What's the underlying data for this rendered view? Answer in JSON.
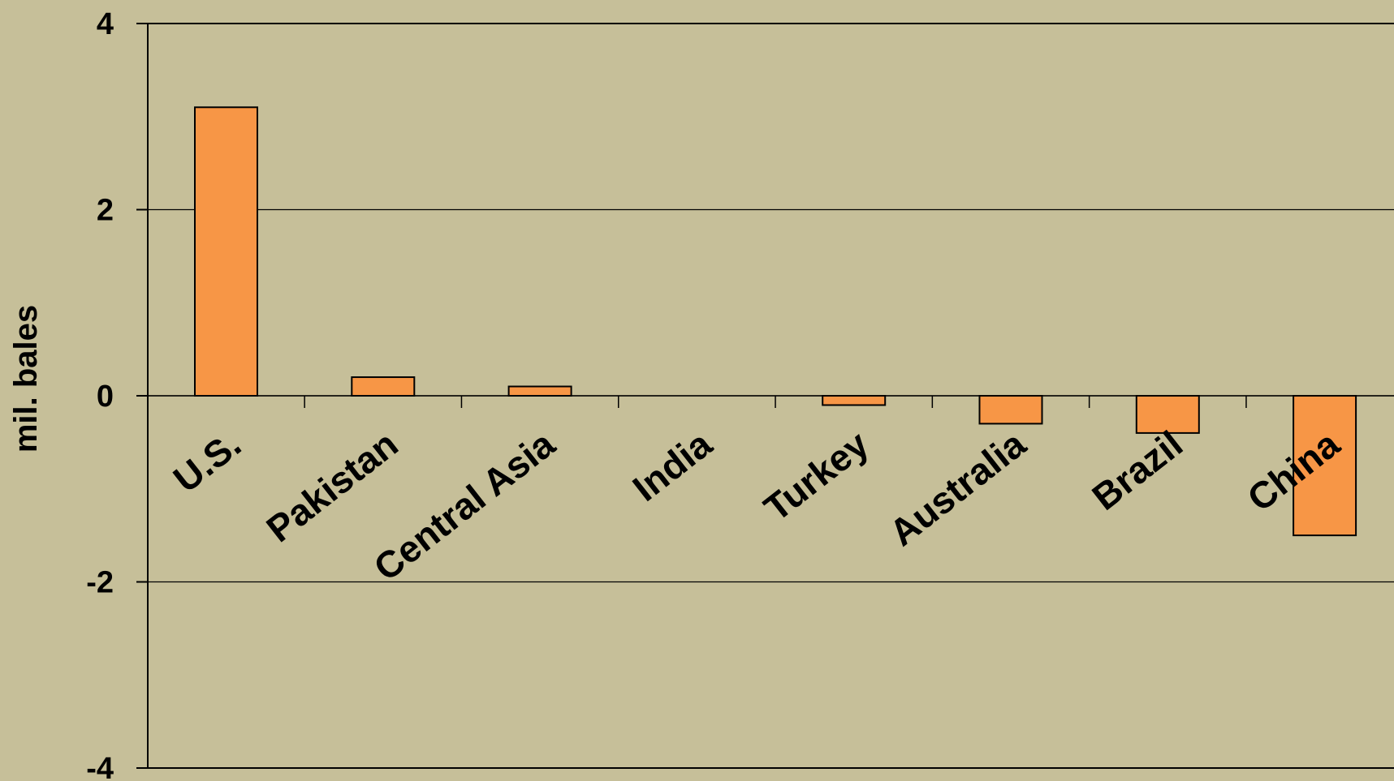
{
  "chart_data": {
    "type": "bar",
    "categories": [
      "U.S.",
      "Pakistan",
      "Central Asia",
      "India",
      "Turkey",
      "Australia",
      "Brazil",
      "China"
    ],
    "values": [
      3.1,
      0.2,
      0.1,
      0.0,
      -0.1,
      -0.3,
      -0.4,
      -1.5
    ],
    "title": "",
    "xlabel": "",
    "ylabel": "mil. bales",
    "ylim": [
      -4,
      4
    ],
    "yticks": [
      -4,
      -2,
      0,
      2,
      4
    ],
    "grid": true,
    "bar_color": "#F79646",
    "background_color": "#C6BF99"
  }
}
